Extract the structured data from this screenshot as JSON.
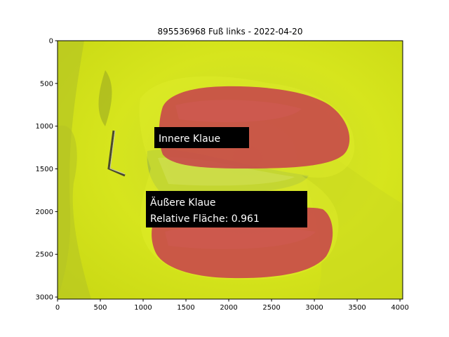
{
  "figure": {
    "title": "895536968 Fuß links - 2022-04-20",
    "x_ticks": [
      "0",
      "500",
      "1000",
      "1500",
      "2000",
      "2500",
      "3000",
      "3500",
      "4000"
    ],
    "y_ticks": [
      "0",
      "500",
      "1000",
      "1500",
      "2000",
      "2500",
      "3000"
    ],
    "x_range": [
      0,
      4032
    ],
    "y_range": [
      3024,
      0
    ],
    "colors": {
      "overlay_yellow": "#d7e61e",
      "claw_red": "#c8484a",
      "label_bg": "#000000",
      "label_text": "#ffffff"
    }
  },
  "annotations": {
    "inner": {
      "line1": "Innere Klaue"
    },
    "outer": {
      "line1": "Äußere Klaue",
      "line2": "Relative Fläche: 0.961"
    }
  }
}
